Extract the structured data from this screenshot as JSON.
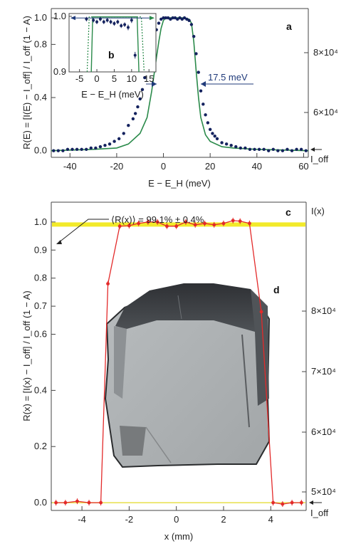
{
  "chart_data": [
    {
      "panel": "a",
      "type": "scatter",
      "title": "",
      "xlabel": "E − E_H (meV)",
      "ylabel": "R(E) = [I(E) − I_off] / I_off (1 − A)",
      "ylabel_right": "",
      "xlim": [
        -48,
        62
      ],
      "ylim": [
        -0.05,
        1.07
      ],
      "xticks": [
        "-40",
        "-20",
        "0",
        "20",
        "40",
        "60"
      ],
      "yticks": [
        "0.0",
        "0.4",
        "0.8",
        "1.0"
      ],
      "yticks_right": [
        "6×10⁴",
        "8×10⁴"
      ],
      "right_marker": "I_off",
      "annotation": "17.5 meV",
      "fit_color": "#2a8a4a",
      "point_color": "#14225e",
      "series": [
        {
          "kind": "points",
          "x": [
            -47,
            -45,
            -43,
            -41,
            -39,
            -37,
            -35,
            -33,
            -31,
            -29,
            -27,
            -25,
            -23,
            -21,
            -19,
            -17,
            -15,
            -13,
            -12,
            -11,
            -10,
            -9,
            -8,
            -7,
            -6,
            -5,
            -4,
            -3,
            -2,
            -1,
            0,
            1,
            2,
            3,
            4,
            5,
            6,
            7,
            8,
            9,
            10,
            11,
            12,
            13,
            14,
            15,
            16,
            17,
            18,
            19,
            20,
            21,
            22,
            23,
            25,
            27,
            29,
            31,
            33,
            35,
            37,
            39,
            41,
            43,
            45,
            47,
            49,
            51,
            53,
            55,
            57,
            59,
            61
          ],
          "y": [
            0.0,
            0.0,
            0.0,
            0.01,
            0.01,
            0.01,
            0.01,
            0.01,
            0.02,
            0.02,
            0.03,
            0.04,
            0.05,
            0.07,
            0.09,
            0.13,
            0.19,
            0.24,
            0.28,
            0.33,
            0.39,
            0.46,
            0.55,
            0.63,
            0.71,
            0.79,
            0.85,
            0.91,
            0.96,
            0.99,
            1.0,
            1.0,
            1.0,
            0.99,
            1.0,
            1.0,
            0.99,
            1.0,
            0.99,
            1.0,
            0.99,
            0.98,
            0.95,
            0.86,
            0.73,
            0.59,
            0.45,
            0.35,
            0.27,
            0.21,
            0.16,
            0.13,
            0.11,
            0.09,
            0.06,
            0.05,
            0.04,
            0.03,
            0.02,
            0.02,
            0.01,
            0.01,
            0.01,
            0.01,
            0.0,
            0.01,
            0.0,
            0.0,
            0.01,
            0.0,
            0.01,
            0.01,
            0.0
          ]
        },
        {
          "kind": "fit",
          "x": [
            -48,
            -30,
            -20,
            -15,
            -10,
            -7,
            -5,
            -3,
            -2,
            -1,
            0,
            1,
            3,
            6,
            9,
            11,
            12,
            13,
            14,
            15,
            16,
            18,
            20,
            25,
            30,
            40,
            62
          ],
          "y": [
            0.0,
            0.01,
            0.02,
            0.05,
            0.13,
            0.25,
            0.45,
            0.7,
            0.82,
            0.92,
            0.98,
            1.0,
            1.0,
            1.0,
            1.0,
            0.99,
            0.96,
            0.82,
            0.6,
            0.4,
            0.25,
            0.12,
            0.07,
            0.03,
            0.02,
            0.01,
            0.0
          ]
        }
      ]
    },
    {
      "panel": "b",
      "type": "scatter",
      "xlabel": "E − E_H (meV)",
      "xlim": [
        -8,
        17
      ],
      "ylim": [
        0.9,
        1.005
      ],
      "xticks": [
        "-5",
        "0",
        "5",
        "10",
        "15"
      ],
      "yticks": [
        "0.9",
        "1.0"
      ],
      "x": [
        -3,
        -1,
        0,
        1,
        2,
        3,
        4,
        5,
        6,
        7,
        8,
        9,
        10,
        11
      ],
      "y": [
        0.995,
        0.993,
        0.99,
        0.995,
        0.99,
        0.993,
        0.99,
        0.987,
        0.99,
        0.983,
        0.985,
        0.98,
        0.993,
        0.93
      ],
      "err": [
        0.004,
        0.004,
        0.004,
        0.004,
        0.004,
        0.004,
        0.004,
        0.004,
        0.004,
        0.004,
        0.004,
        0.005,
        0.005,
        0.006
      ]
    },
    {
      "panel": "c",
      "type": "line",
      "title": "",
      "xlabel": "x (mm)",
      "ylabel": "R(x) = [I(x) − I_off] / I_off (1 − A)",
      "ylabel_right": "I(x)",
      "xlim": [
        -5.3,
        5.5
      ],
      "ylim": [
        -0.015,
        1.03
      ],
      "xticks": [
        "-4",
        "-2",
        "0",
        "2",
        "4"
      ],
      "yticks": [
        "0.0",
        "0.2",
        "0.4",
        "0.6",
        "0.7",
        "0.8",
        "0.9",
        "1.0"
      ],
      "yticks_right": [
        "5×10⁴",
        "6×10⁴",
        "7×10⁴",
        "8×10⁴"
      ],
      "right_marker": "I_off",
      "annotation": "⟨R(x)⟩ = 99.1% ± 0.4%",
      "mean_line": 0.991,
      "band_color": "#f2ea2a",
      "line_color": "#e32a2a",
      "x": [
        -5.1,
        -4.7,
        -4.2,
        -3.7,
        -3.2,
        -2.9,
        -2.4,
        -2.0,
        -1.6,
        -1.2,
        -0.8,
        -0.4,
        0.0,
        0.4,
        0.8,
        1.2,
        1.6,
        2.0,
        2.4,
        2.7,
        3.1,
        3.6,
        4.1,
        4.5,
        4.9,
        5.3
      ],
      "y": [
        0.0,
        0.0,
        0.005,
        0.0,
        0.0,
        0.78,
        0.985,
        0.987,
        0.995,
        1.0,
        1.0,
        0.985,
        0.985,
        1.0,
        0.99,
        0.995,
        0.99,
        0.995,
        1.005,
        1.003,
        0.995,
        0.68,
        0.0,
        -0.005,
        0.0,
        0.0
      ]
    }
  ],
  "panels": {
    "a": "a",
    "b": "b",
    "c": "c",
    "d": "d"
  }
}
